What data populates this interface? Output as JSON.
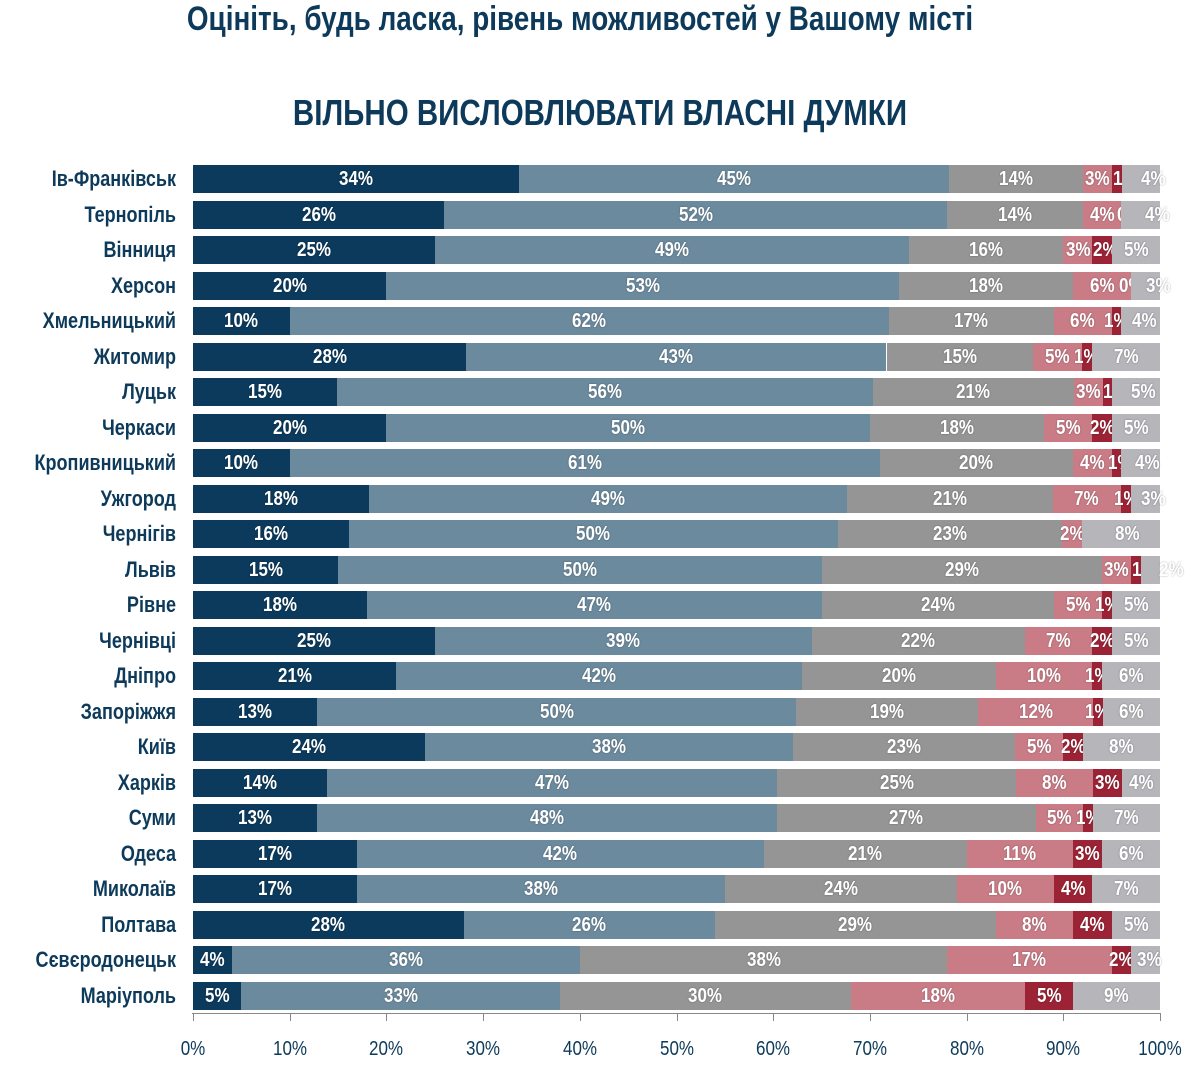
{
  "chart_data": {
    "type": "bar",
    "orientation": "horizontal",
    "stacked": "100%",
    "title": "Оцініть, будь ласка, рівень можливостей у Вашому місті",
    "subtitle": "ВІЛЬНО ВИСЛОВЛЮВАТИ ВЛАСНІ ДУМКИ",
    "xlim": [
      0,
      100
    ],
    "x_ticks": [
      "0%",
      "10%",
      "20%",
      "30%",
      "40%",
      "50%",
      "60%",
      "70%",
      "80%",
      "90%",
      "100%"
    ],
    "colors": [
      "#0b3a5c",
      "#6b8a9d",
      "#959596",
      "#c97c86",
      "#9c2335",
      "#b5b5ba"
    ],
    "categories": [
      "Ів-Франківськ",
      "Тернопіль",
      "Вінниця",
      "Херсон",
      "Хмельницький",
      "Житомир",
      "Луцьк",
      "Черкаси",
      "Кропивницький",
      "Ужгород",
      "Чернігів",
      "Львів",
      "Рівне",
      "Чернівці",
      "Дніпро",
      "Запоріжжя",
      "Київ",
      "Харків",
      "Суми",
      "Одеса",
      "Миколаїв",
      "Полтава",
      "Сєвєродонецьк",
      "Маріуполь"
    ],
    "values": [
      [
        34,
        45,
        14,
        3,
        1,
        4
      ],
      [
        26,
        52,
        14,
        4,
        0,
        4
      ],
      [
        25,
        49,
        16,
        3,
        2,
        5
      ],
      [
        20,
        53,
        18,
        6,
        0,
        3
      ],
      [
        10,
        62,
        17,
        6,
        1,
        4
      ],
      [
        28,
        43,
        15,
        5,
        1,
        7
      ],
      [
        15,
        56,
        21,
        3,
        1,
        5
      ],
      [
        20,
        50,
        18,
        5,
        2,
        5
      ],
      [
        10,
        61,
        20,
        4,
        1,
        4
      ],
      [
        18,
        49,
        21,
        7,
        1,
        3
      ],
      [
        16,
        50,
        23,
        2,
        0,
        8
      ],
      [
        15,
        50,
        29,
        3,
        1,
        2
      ],
      [
        18,
        47,
        24,
        5,
        1,
        5
      ],
      [
        25,
        39,
        22,
        7,
        2,
        5
      ],
      [
        21,
        42,
        20,
        10,
        1,
        6
      ],
      [
        13,
        50,
        19,
        12,
        1,
        6
      ],
      [
        24,
        38,
        23,
        5,
        2,
        8
      ],
      [
        14,
        47,
        25,
        8,
        3,
        4
      ],
      [
        13,
        48,
        27,
        5,
        1,
        7
      ],
      [
        17,
        42,
        21,
        11,
        3,
        6
      ],
      [
        17,
        38,
        24,
        10,
        4,
        7
      ],
      [
        28,
        26,
        29,
        8,
        4,
        5
      ],
      [
        4,
        36,
        38,
        17,
        2,
        3
      ],
      [
        5,
        33,
        30,
        18,
        5,
        9
      ]
    ],
    "grid": false,
    "legend": "none"
  }
}
